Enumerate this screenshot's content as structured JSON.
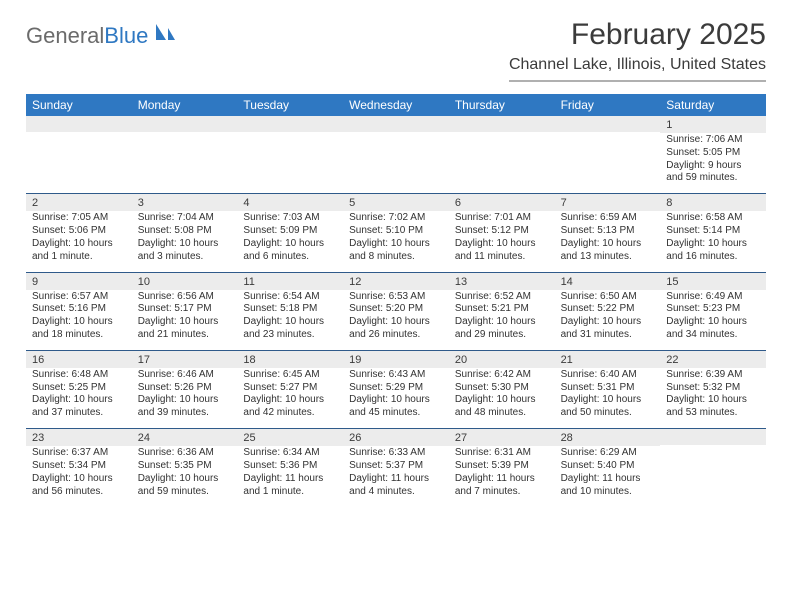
{
  "logo": {
    "word1": "General",
    "word2": "Blue"
  },
  "title": "February 2025",
  "location": "Channel Lake, Illinois, United States",
  "header_bg": "#2f78c2",
  "header_fg": "#ffffff",
  "daynum_bg": "#ececec",
  "rule_color": "#2f5a8a",
  "day_names": [
    "Sunday",
    "Monday",
    "Tuesday",
    "Wednesday",
    "Thursday",
    "Friday",
    "Saturday"
  ],
  "weeks": [
    [
      null,
      null,
      null,
      null,
      null,
      null,
      {
        "n": "1",
        "sunrise": "7:06 AM",
        "sunset": "5:05 PM",
        "daylight": "9 hours and 59 minutes."
      }
    ],
    [
      {
        "n": "2",
        "sunrise": "7:05 AM",
        "sunset": "5:06 PM",
        "daylight": "10 hours and 1 minute."
      },
      {
        "n": "3",
        "sunrise": "7:04 AM",
        "sunset": "5:08 PM",
        "daylight": "10 hours and 3 minutes."
      },
      {
        "n": "4",
        "sunrise": "7:03 AM",
        "sunset": "5:09 PM",
        "daylight": "10 hours and 6 minutes."
      },
      {
        "n": "5",
        "sunrise": "7:02 AM",
        "sunset": "5:10 PM",
        "daylight": "10 hours and 8 minutes."
      },
      {
        "n": "6",
        "sunrise": "7:01 AM",
        "sunset": "5:12 PM",
        "daylight": "10 hours and 11 minutes."
      },
      {
        "n": "7",
        "sunrise": "6:59 AM",
        "sunset": "5:13 PM",
        "daylight": "10 hours and 13 minutes."
      },
      {
        "n": "8",
        "sunrise": "6:58 AM",
        "sunset": "5:14 PM",
        "daylight": "10 hours and 16 minutes."
      }
    ],
    [
      {
        "n": "9",
        "sunrise": "6:57 AM",
        "sunset": "5:16 PM",
        "daylight": "10 hours and 18 minutes."
      },
      {
        "n": "10",
        "sunrise": "6:56 AM",
        "sunset": "5:17 PM",
        "daylight": "10 hours and 21 minutes."
      },
      {
        "n": "11",
        "sunrise": "6:54 AM",
        "sunset": "5:18 PM",
        "daylight": "10 hours and 23 minutes."
      },
      {
        "n": "12",
        "sunrise": "6:53 AM",
        "sunset": "5:20 PM",
        "daylight": "10 hours and 26 minutes."
      },
      {
        "n": "13",
        "sunrise": "6:52 AM",
        "sunset": "5:21 PM",
        "daylight": "10 hours and 29 minutes."
      },
      {
        "n": "14",
        "sunrise": "6:50 AM",
        "sunset": "5:22 PM",
        "daylight": "10 hours and 31 minutes."
      },
      {
        "n": "15",
        "sunrise": "6:49 AM",
        "sunset": "5:23 PM",
        "daylight": "10 hours and 34 minutes."
      }
    ],
    [
      {
        "n": "16",
        "sunrise": "6:48 AM",
        "sunset": "5:25 PM",
        "daylight": "10 hours and 37 minutes."
      },
      {
        "n": "17",
        "sunrise": "6:46 AM",
        "sunset": "5:26 PM",
        "daylight": "10 hours and 39 minutes."
      },
      {
        "n": "18",
        "sunrise": "6:45 AM",
        "sunset": "5:27 PM",
        "daylight": "10 hours and 42 minutes."
      },
      {
        "n": "19",
        "sunrise": "6:43 AM",
        "sunset": "5:29 PM",
        "daylight": "10 hours and 45 minutes."
      },
      {
        "n": "20",
        "sunrise": "6:42 AM",
        "sunset": "5:30 PM",
        "daylight": "10 hours and 48 minutes."
      },
      {
        "n": "21",
        "sunrise": "6:40 AM",
        "sunset": "5:31 PM",
        "daylight": "10 hours and 50 minutes."
      },
      {
        "n": "22",
        "sunrise": "6:39 AM",
        "sunset": "5:32 PM",
        "daylight": "10 hours and 53 minutes."
      }
    ],
    [
      {
        "n": "23",
        "sunrise": "6:37 AM",
        "sunset": "5:34 PM",
        "daylight": "10 hours and 56 minutes."
      },
      {
        "n": "24",
        "sunrise": "6:36 AM",
        "sunset": "5:35 PM",
        "daylight": "10 hours and 59 minutes."
      },
      {
        "n": "25",
        "sunrise": "6:34 AM",
        "sunset": "5:36 PM",
        "daylight": "11 hours and 1 minute."
      },
      {
        "n": "26",
        "sunrise": "6:33 AM",
        "sunset": "5:37 PM",
        "daylight": "11 hours and 4 minutes."
      },
      {
        "n": "27",
        "sunrise": "6:31 AM",
        "sunset": "5:39 PM",
        "daylight": "11 hours and 7 minutes."
      },
      {
        "n": "28",
        "sunrise": "6:29 AM",
        "sunset": "5:40 PM",
        "daylight": "11 hours and 10 minutes."
      },
      null
    ]
  ],
  "labels": {
    "sunrise": "Sunrise:",
    "sunset": "Sunset:",
    "daylight": "Daylight:"
  }
}
